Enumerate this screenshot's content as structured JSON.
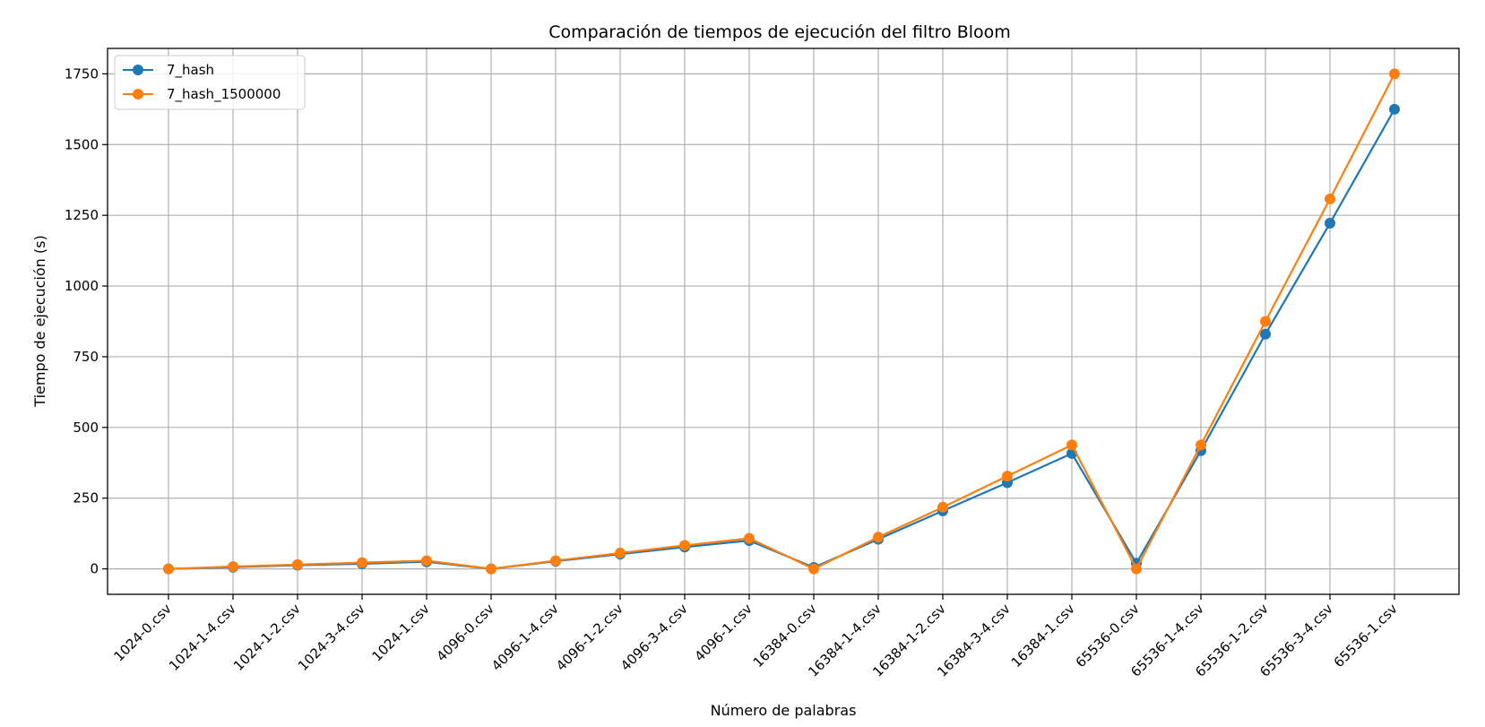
{
  "chart_data": {
    "type": "line",
    "title": "Comparación de tiempos de ejecución del filtro Bloom",
    "xlabel": "Número de palabras",
    "ylabel": "Tiempo de ejecución (s)",
    "ylim": [
      -90,
      1840
    ],
    "yticks": [
      0,
      250,
      500,
      750,
      1000,
      1250,
      1500,
      1750
    ],
    "grid": true,
    "legend_position": "top-left",
    "categories": [
      "1024-0.csv",
      "1024-1-4.csv",
      "1024-1-2.csv",
      "1024-3-4.csv",
      "1024-1.csv",
      "4096-0.csv",
      "4096-1-4.csv",
      "4096-1-2.csv",
      "4096-3-4.csv",
      "4096-1.csv",
      "16384-0.csv",
      "16384-1-4.csv",
      "16384-1-2.csv",
      "16384-3-4.csv",
      "16384-1.csv",
      "65536-0.csv",
      "65536-1-4.csv",
      "65536-1-2.csv",
      "65536-3-4.csv",
      "65536-1.csv"
    ],
    "series": [
      {
        "name": "7_hash",
        "color": "#1f77b4",
        "values": [
          0,
          6,
          13,
          18,
          25,
          0,
          27,
          52,
          77,
          100,
          5,
          105,
          205,
          305,
          408,
          20,
          418,
          830,
          1222,
          1625
        ]
      },
      {
        "name": "7_hash_1500000",
        "color": "#ff7f0e",
        "values": [
          0,
          8,
          15,
          22,
          29,
          0,
          29,
          56,
          83,
          108,
          0,
          112,
          218,
          328,
          438,
          0,
          438,
          875,
          1308,
          1750
        ]
      }
    ]
  }
}
